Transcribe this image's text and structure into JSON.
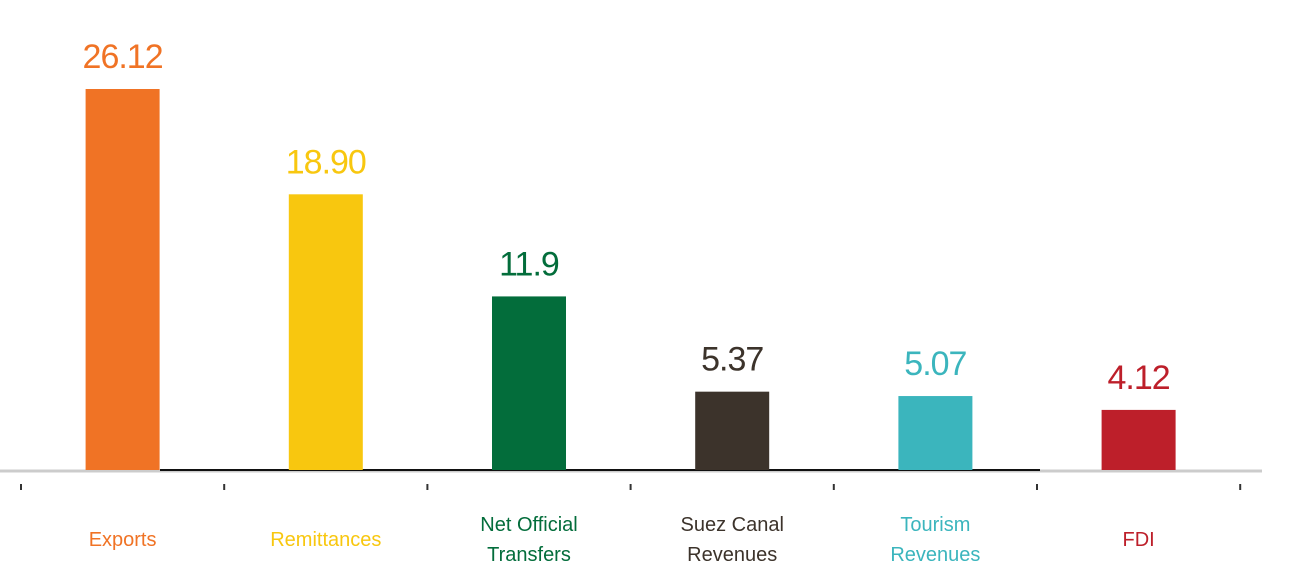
{
  "chart_data": {
    "type": "bar",
    "categories": [
      "Exports",
      "Remittances",
      "Net Official Transfers",
      "Suez Canal Revenues",
      "Tourism Revenues",
      "FDI"
    ],
    "values": [
      26.12,
      18.9,
      11.9,
      5.37,
      5.07,
      4.12
    ],
    "value_labels": [
      "26.12",
      "18.90",
      "11.9",
      "5.37",
      "5.07",
      "4.12"
    ],
    "colors": [
      "#f07325",
      "#f8c70f",
      "#036d3b",
      "#3c332b",
      "#3bb5bd",
      "#bd1f2a"
    ]
  }
}
